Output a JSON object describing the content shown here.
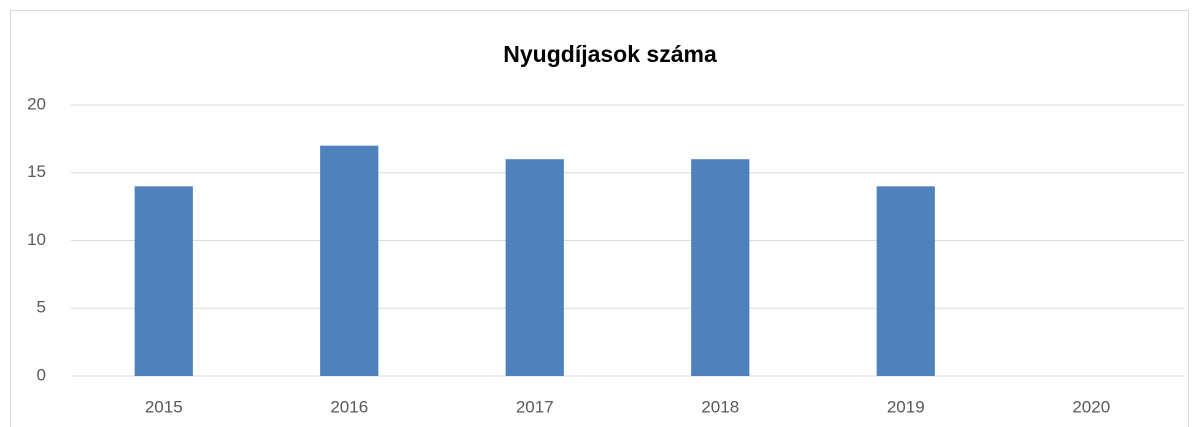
{
  "chart_data": {
    "type": "bar",
    "title": "Nyugdíjasok száma",
    "categories": [
      "2015",
      "2016",
      "2017",
      "2018",
      "2019",
      "2020"
    ],
    "values": [
      14,
      17,
      16,
      16,
      14,
      0
    ],
    "color": "#4f81bd",
    "ylim": [
      0,
      20
    ],
    "yticks": [
      0,
      5,
      10,
      15,
      20
    ],
    "grid": true
  }
}
